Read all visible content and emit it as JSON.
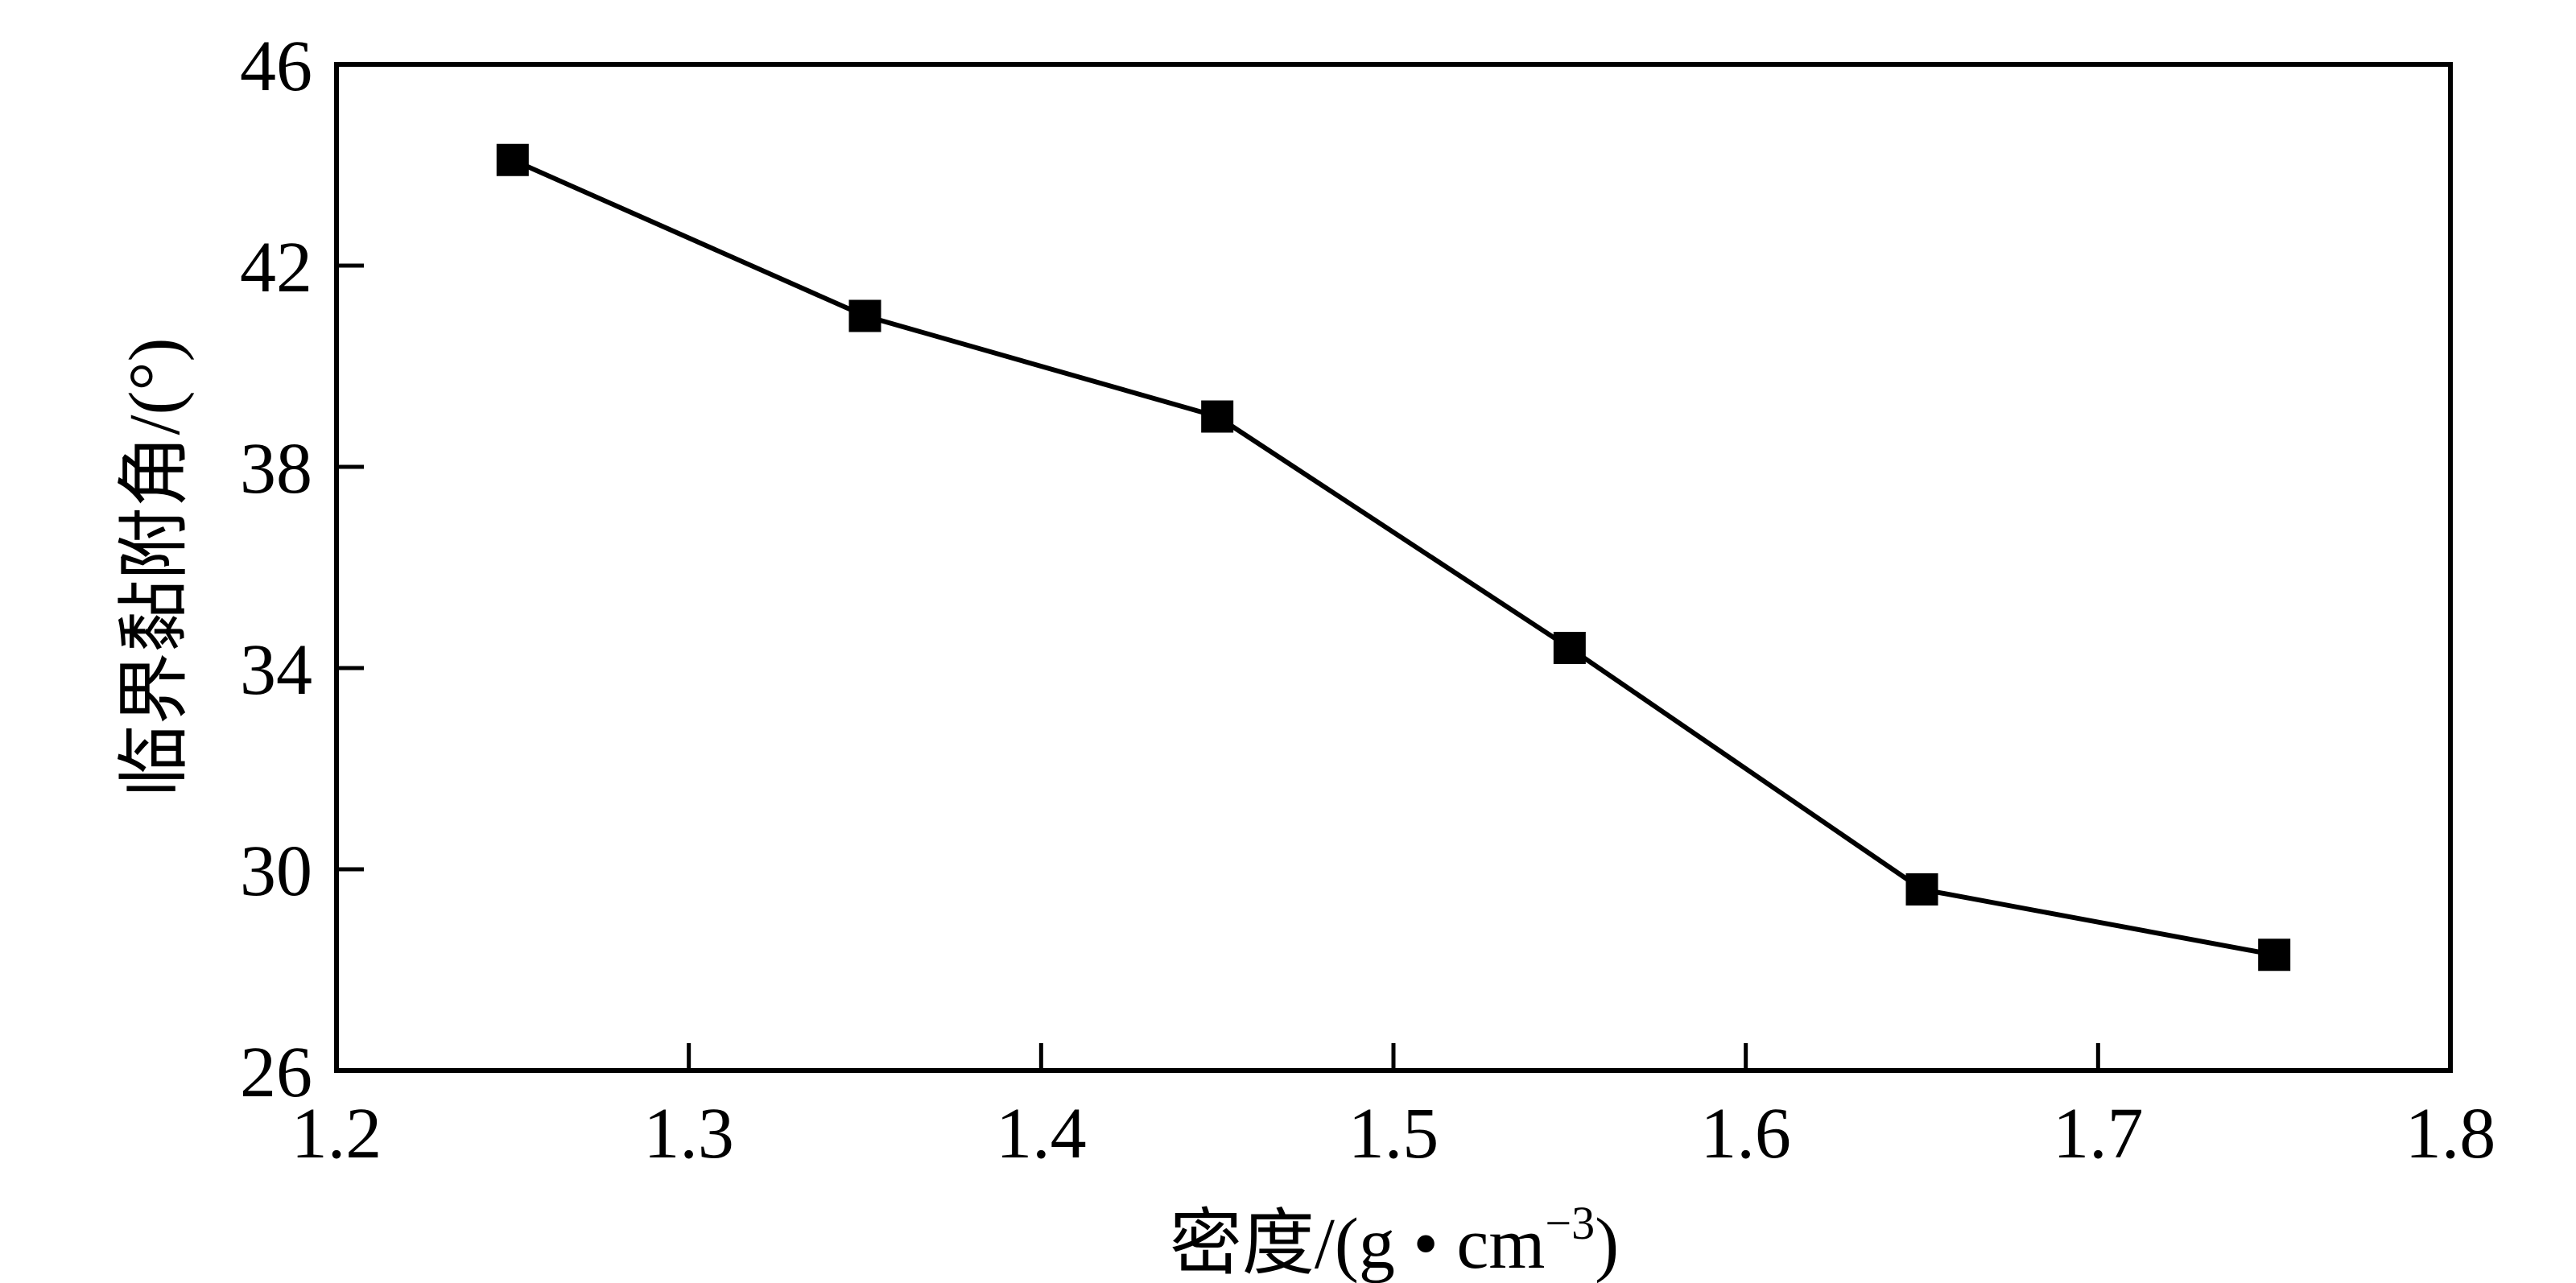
{
  "chart_data": {
    "type": "line",
    "title": "",
    "xlabel": "密度/(g • cm",
    "xlabel_superscript": "−3",
    "xlabel_suffix": ")",
    "ylabel": "临界黏附角/(°)",
    "xlim": [
      1.2,
      1.8
    ],
    "ylim": [
      26,
      46
    ],
    "xticks": [
      1.2,
      1.3,
      1.4,
      1.5,
      1.6,
      1.7,
      1.8
    ],
    "xtick_labels": [
      "1.2",
      "1.3",
      "1.4",
      "1.5",
      "1.6",
      "1.7",
      "1.8"
    ],
    "yticks": [
      26,
      30,
      34,
      38,
      42,
      46
    ],
    "ytick_labels": [
      "26",
      "30",
      "34",
      "38",
      "42",
      "46"
    ],
    "grid": false,
    "legend": "none",
    "marker": "square",
    "color": "#000000",
    "series": [
      {
        "x": [
          1.25,
          1.35,
          1.45,
          1.55,
          1.65,
          1.75
        ],
        "y": [
          44.1,
          41.0,
          39.0,
          34.4,
          29.6,
          28.3
        ]
      }
    ]
  }
}
